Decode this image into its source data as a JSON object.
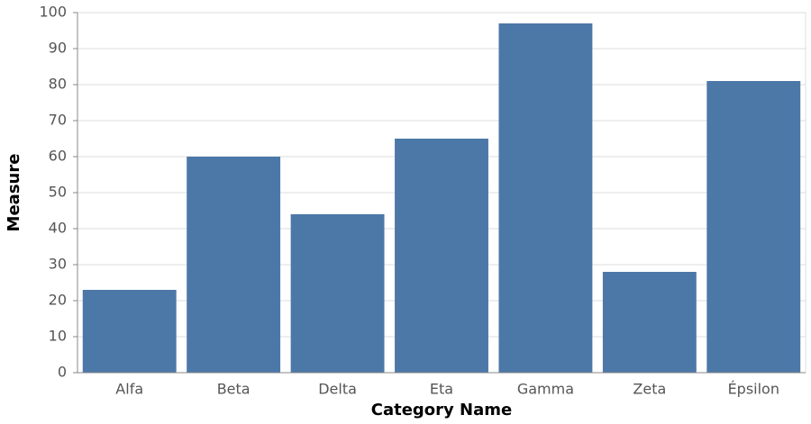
{
  "chart_data": {
    "type": "bar",
    "categories": [
      "Alfa",
      "Beta",
      "Delta",
      "Eta",
      "Gamma",
      "Zeta",
      "Épsilon"
    ],
    "values": [
      23,
      60,
      44,
      65,
      97,
      28,
      81
    ],
    "color": "#4c78a8",
    "xlabel": "Category Name",
    "ylabel": "Measure",
    "ylim": [
      0,
      100
    ],
    "yticks": [
      0,
      10,
      20,
      30,
      40,
      50,
      60,
      70,
      80,
      90,
      100
    ],
    "grid": true
  }
}
